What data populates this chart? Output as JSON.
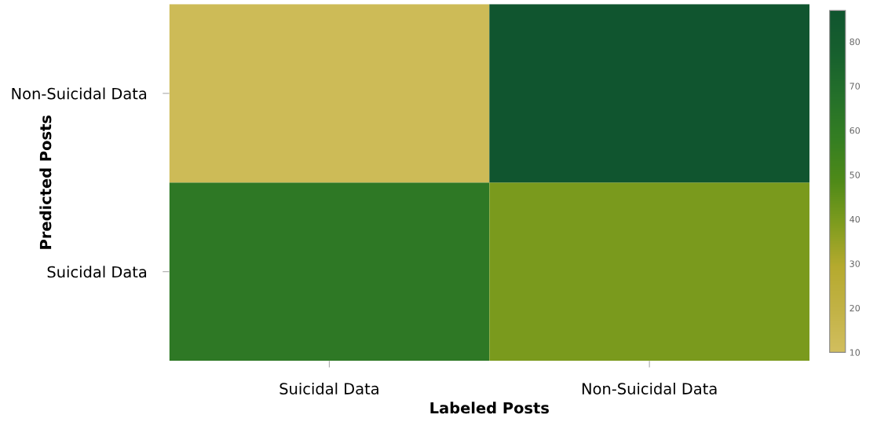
{
  "chart_data": {
    "type": "heatmap",
    "xlabel": "Labeled Posts",
    "ylabel": "Predicted Posts",
    "categories": [
      "Suicidal Data",
      "Non-Suicidal Data"
    ],
    "y_categories": [
      "Non-Suicidal Data",
      "Suicidal Data"
    ],
    "cells": [
      [
        13,
        87
      ],
      [
        62,
        40
      ]
    ],
    "colors": [
      "#d2be5e",
      "#c2b245",
      "#b5aa2e",
      "#7f9c1e",
      "#4f8a18",
      "#347e22",
      "#24702a",
      "#17602e",
      "#10552f"
    ],
    "clim": [
      10,
      87
    ],
    "cticks": [
      10,
      20,
      30,
      40,
      50,
      60,
      70,
      80
    ],
    "grid": false
  }
}
